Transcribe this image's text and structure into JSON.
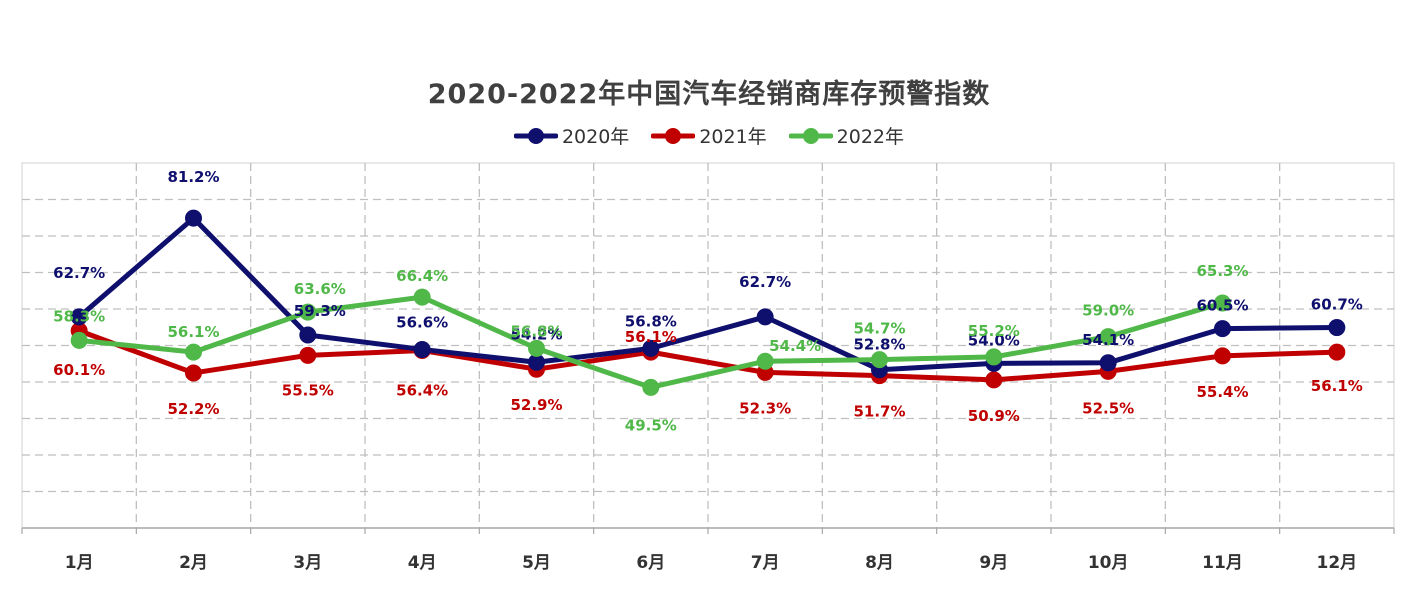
{
  "chart_data": {
    "type": "line",
    "title": "2020-2022年中国汽车经销商库存预警指数",
    "xlabel": "",
    "ylabel": "",
    "categories": [
      "1月",
      "2月",
      "3月",
      "4月",
      "5月",
      "6月",
      "7月",
      "8月",
      "9月",
      "10月",
      "11月",
      "12月"
    ],
    "series": [
      {
        "name": "2020年",
        "color": "#0f0f6e",
        "values": [
          62.7,
          81.2,
          59.3,
          56.6,
          54.2,
          56.8,
          62.7,
          52.8,
          54.0,
          54.1,
          60.5,
          60.7
        ],
        "labels": [
          "62.7%",
          "81.2%",
          "59.3%",
          "56.6%",
          "54.2%",
          "56.8%",
          "62.7%",
          "52.8%",
          "54.0%",
          "54.1%",
          "60.5%",
          "60.7%"
        ]
      },
      {
        "name": "2021年",
        "color": "#c00000",
        "values": [
          60.1,
          52.2,
          55.5,
          56.4,
          52.9,
          56.1,
          52.3,
          51.7,
          50.9,
          52.5,
          55.4,
          56.1
        ],
        "labels": [
          "60.1%",
          "52.2%",
          "55.5%",
          "56.4%",
          "52.9%",
          "56.1%",
          "52.3%",
          "51.7%",
          "50.9%",
          "52.5%",
          "55.4%",
          "56.1%"
        ]
      },
      {
        "name": "2022年",
        "color": "#4fb848",
        "values": [
          58.3,
          56.1,
          63.6,
          66.4,
          56.8,
          49.5,
          54.4,
          54.7,
          55.2,
          59.0,
          65.3,
          null
        ],
        "labels": [
          "58.3%",
          "56.1%",
          "63.6%",
          "66.4%",
          "56.8%",
          "49.5%",
          "54.4%",
          "54.7%",
          "55.2%",
          "59.0%",
          "65.3%",
          null
        ]
      }
    ],
    "grid": true,
    "legend_position": "top-center"
  }
}
